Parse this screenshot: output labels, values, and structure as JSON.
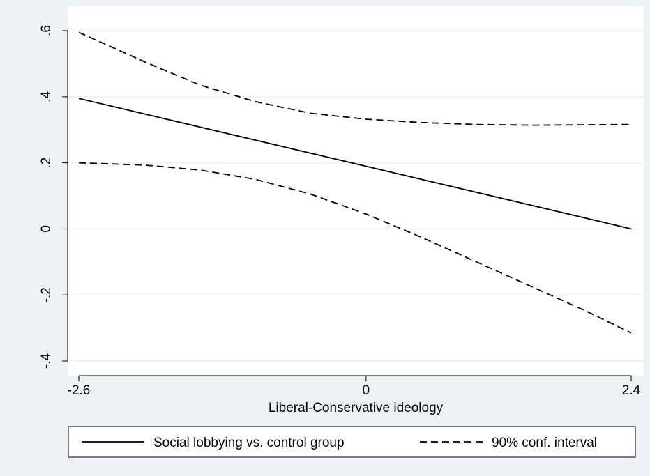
{
  "chart_data": {
    "type": "line",
    "xlabel": "Liberal-Conservative ideology",
    "ylabel": "",
    "xlim": [
      -2.6,
      2.4
    ],
    "ylim": [
      -0.4,
      0.6
    ],
    "x_ticks": [
      {
        "value": -2.6,
        "label": "-2.6"
      },
      {
        "value": 0,
        "label": "0"
      },
      {
        "value": 2.4,
        "label": "2.4"
      }
    ],
    "y_ticks": [
      {
        "value": -0.4,
        "label": "-.4"
      },
      {
        "value": -0.2,
        "label": "-.2"
      },
      {
        "value": 0,
        "label": "0"
      },
      {
        "value": 0.2,
        "label": ".2"
      },
      {
        "value": 0.4,
        "label": ".4"
      },
      {
        "value": 0.6,
        "label": ".6"
      }
    ],
    "grid": "horizontal",
    "legend_position": "bottom",
    "series": [
      {
        "name": "Social lobbying vs. control group",
        "style": "solid",
        "color": "#000000",
        "x": [
          -2.6,
          2.4
        ],
        "y": [
          0.395,
          0.0
        ]
      },
      {
        "name": "90% conf. interval",
        "style": "dashed",
        "color": "#000000",
        "x": [
          -2.6,
          -2.0,
          -1.5,
          -1.0,
          -0.5,
          0.0,
          0.5,
          1.0,
          1.5,
          2.0,
          2.4
        ],
        "y": [
          0.595,
          0.505,
          0.435,
          0.385,
          0.35,
          0.332,
          0.322,
          0.316,
          0.314,
          0.315,
          0.316
        ]
      },
      {
        "name": "",
        "style": "dashed",
        "color": "#000000",
        "x": [
          -2.6,
          -2.0,
          -1.5,
          -1.0,
          -0.5,
          0.0,
          0.5,
          1.0,
          1.5,
          2.0,
          2.4
        ],
        "y": [
          0.2,
          0.193,
          0.178,
          0.15,
          0.105,
          0.045,
          -0.025,
          -0.1,
          -0.175,
          -0.25,
          -0.315
        ]
      }
    ],
    "legend": [
      {
        "label": "Social lobbying vs. control group",
        "style": "solid"
      },
      {
        "label": "90% conf. interval",
        "style": "dashed"
      }
    ]
  },
  "colors": {
    "background": "#eaf2f3",
    "plot_area": "#ffffff",
    "gridline": "#eaf2f3"
  }
}
